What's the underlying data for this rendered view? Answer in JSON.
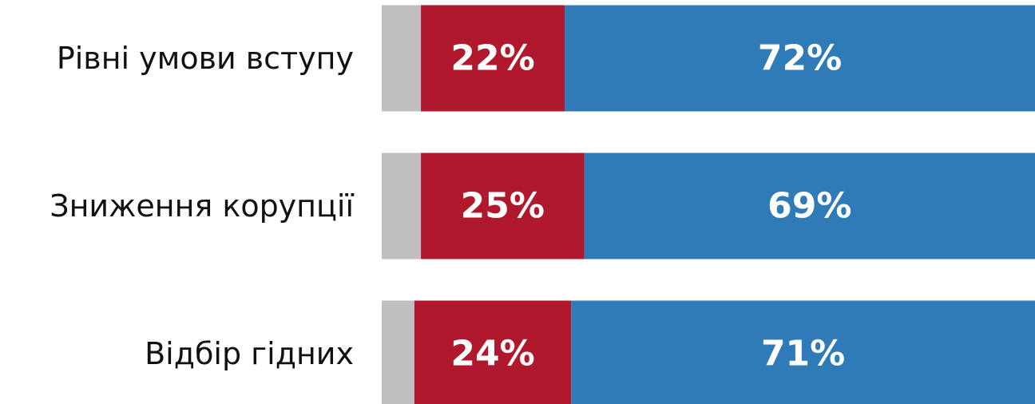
{
  "chart_data": {
    "type": "stacked-bar-horizontal",
    "categories": [
      "Рівні умови вступу",
      "Зниження корупції",
      "Відбір гідних"
    ],
    "series": [
      {
        "color": "#bfbfbf",
        "values": [
          6,
          6,
          5
        ]
      },
      {
        "color": "#b0192d",
        "values": [
          22,
          25,
          24
        ],
        "value_labels": [
          "22%",
          "25%",
          "24%"
        ]
      },
      {
        "color": "#2e7bb8",
        "values": [
          72,
          69,
          71
        ],
        "value_labels": [
          "72%",
          "69%",
          "71%"
        ]
      }
    ],
    "xlim": [
      0,
      100
    ]
  }
}
